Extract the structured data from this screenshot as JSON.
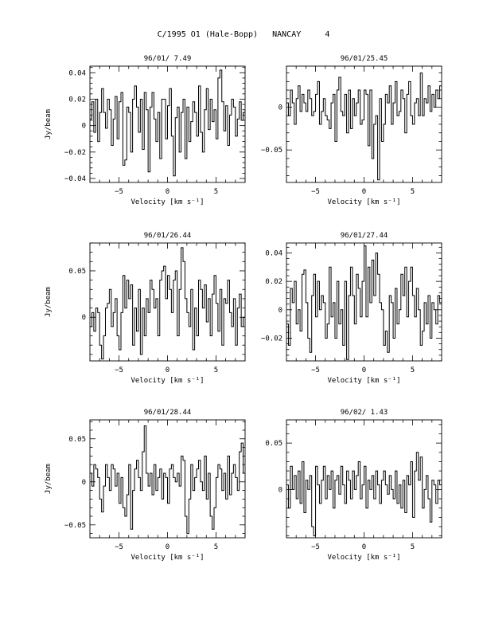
{
  "page": {
    "title": "C/1995 O1 (Hale-Bopp)   NANCAY     4"
  },
  "chart_data": [
    {
      "type": "line",
      "title": "96/01/ 7.49",
      "xlabel": "Velocity [km s⁻¹]",
      "ylabel": "Jy/beam",
      "xlim": [
        -8,
        8
      ],
      "ylim": [
        -0.043,
        0.045
      ],
      "xticks": [
        -5,
        0,
        5
      ],
      "yticks": [
        -0.04,
        -0.02,
        0,
        0.02,
        0.04
      ],
      "yticklabels": [
        "−0.04",
        "−0.02",
        "0",
        "0.02",
        "0.04"
      ],
      "x_start": -7.9,
      "x_step": 0.2,
      "values": [
        0.005,
        0.018,
        -0.005,
        0.02,
        -0.012,
        0.01,
        0.028,
        0.01,
        -0.002,
        0.02,
        0.012,
        -0.015,
        0.005,
        0.022,
        -0.01,
        0.018,
        0.025,
        -0.03,
        -0.026,
        0.014,
        0.01,
        -0.02,
        0.02,
        0.03,
        0.014,
        -0.005,
        0.02,
        -0.018,
        0.025,
        0.012,
        -0.035,
        0.014,
        0.025,
        0.005,
        -0.012,
        0.01,
        -0.025,
        0.02,
        0.02,
        -0.01,
        0.015,
        0.028,
        -0.008,
        -0.038,
        0.006,
        0.014,
        -0.02,
        0.01,
        0.02,
        -0.025,
        0.014,
        -0.012,
        0.003,
        0.018,
        0.01,
        -0.008,
        0.03,
        -0.005,
        -0.02,
        0.012,
        0.028,
        -0.003,
        0.02,
        0.003,
        0.012,
        -0.01,
        0.036,
        0.042,
        0.018,
        -0.004,
        0.015,
        -0.015,
        0.008,
        0.02,
        0.014,
        -0.008,
        0.005,
        0.018,
        0.004,
        0.01
      ]
    },
    {
      "type": "line",
      "title": "96/01/25.45",
      "xlabel": "Velocity [km s⁻¹]",
      "ylabel": "",
      "xlim": [
        -8,
        8
      ],
      "ylim": [
        -0.088,
        0.048
      ],
      "xticks": [
        -5,
        0,
        5
      ],
      "yticks": [
        -0.05,
        0
      ],
      "yticklabels": [
        "−0.05",
        "0"
      ],
      "x_start": -7.9,
      "x_step": 0.2,
      "values": [
        0.005,
        -0.01,
        0.02,
        0.005,
        -0.02,
        0.01,
        0.025,
        -0.005,
        0.015,
        0.005,
        -0.005,
        0.02,
        0.01,
        -0.01,
        -0.005,
        0.015,
        0.03,
        -0.02,
        -0.005,
        0.01,
        -0.01,
        -0.015,
        -0.025,
        0.005,
        0.015,
        -0.04,
        0.02,
        0.035,
        -0.005,
        -0.01,
        0.015,
        -0.03,
        0.02,
        -0.025,
        0.01,
        -0.01,
        0.005,
        0.02,
        -0.02,
        -0.015,
        0.02,
        0.015,
        -0.045,
        0.02,
        -0.06,
        -0.02,
        -0.01,
        -0.085,
        0.01,
        -0.04,
        -0.02,
        0.015,
        0.005,
        0.025,
        -0.02,
        0.005,
        0.03,
        -0.01,
        -0.005,
        0.02,
        0.01,
        -0.03,
        0.015,
        0.03,
        -0.01,
        -0.02,
        0.005,
        0.01,
        -0.01,
        0.04,
        -0.01,
        0.01,
        0.005,
        0.025,
        -0.005,
        0.015,
        0.0,
        0.02,
        0.01,
        0.025
      ]
    },
    {
      "type": "line",
      "title": "96/01/26.44",
      "xlabel": "Velocity [km s⁻¹]",
      "ylabel": "Jy/beam",
      "xlim": [
        -8,
        8
      ],
      "ylim": [
        -0.047,
        0.08
      ],
      "xticks": [
        -5,
        0,
        5
      ],
      "yticks": [
        0,
        0.05
      ],
      "yticklabels": [
        "0",
        "0.05"
      ],
      "x_start": -7.9,
      "x_step": 0.2,
      "values": [
        -0.01,
        0.005,
        -0.015,
        0.01,
        0.005,
        -0.03,
        -0.045,
        -0.02,
        0.01,
        0.015,
        0.03,
        -0.01,
        0.005,
        0.02,
        -0.02,
        -0.035,
        0.005,
        0.045,
        0.01,
        0.04,
        0.02,
        0.035,
        -0.03,
        0.01,
        -0.015,
        0.03,
        -0.04,
        0.01,
        -0.02,
        0.02,
        0.005,
        0.04,
        0.03,
        0.01,
        0.02,
        -0.02,
        0.04,
        0.05,
        0.055,
        0.02,
        0.045,
        0.03,
        0.005,
        0.04,
        0.05,
        -0.02,
        0.03,
        0.075,
        0.06,
        0.02,
        0.005,
        -0.01,
        0.03,
        -0.035,
        0.01,
        -0.02,
        0.04,
        0.03,
        0.01,
        0.035,
        -0.005,
        0.02,
        -0.02,
        0.025,
        0.045,
        0.015,
        -0.015,
        0.03,
        -0.03,
        0.02,
        0.015,
        0.04,
        0.005,
        -0.01,
        0.02,
        -0.03,
        0.01,
        0.025,
        -0.01,
        0.0
      ]
    },
    {
      "type": "line",
      "title": "96/01/27.44",
      "xlabel": "Velocity [km s⁻¹]",
      "ylabel": "",
      "xlim": [
        -8,
        8
      ],
      "ylim": [
        -0.036,
        0.047
      ],
      "xticks": [
        -5,
        0,
        5
      ],
      "yticks": [
        -0.02,
        0,
        0.02,
        0.04
      ],
      "yticklabels": [
        "−0.02",
        "0",
        "0.02",
        "0.04"
      ],
      "x_start": -7.9,
      "x_step": 0.2,
      "values": [
        -0.01,
        -0.025,
        0.015,
        0.005,
        0.02,
        -0.01,
        0.0,
        -0.015,
        0.025,
        0.028,
        0.005,
        -0.02,
        -0.03,
        0.01,
        0.025,
        -0.005,
        0.02,
        0.0,
        0.01,
        0.005,
        -0.02,
        -0.01,
        0.03,
        -0.005,
        0.005,
        -0.02,
        0.02,
        -0.01,
        0.0,
        -0.025,
        0.02,
        -0.035,
        0.01,
        0.03,
        0.01,
        -0.01,
        0.025,
        0.015,
        -0.005,
        0.02,
        0.045,
        -0.005,
        0.03,
        0.005,
        0.035,
        0.01,
        0.04,
        0.025,
        0.005,
        0.0,
        -0.025,
        -0.015,
        -0.03,
        0.01,
        0.005,
        -0.02,
        0.015,
        -0.01,
        0.0,
        0.025,
        0.01,
        0.03,
        -0.005,
        0.02,
        0.03,
        0.01,
        -0.005,
        0.015,
        0.0,
        -0.025,
        -0.015,
        0.005,
        -0.01,
        0.01,
        -0.02,
        0.005,
        0.0,
        -0.01,
        0.01,
        0.005
      ]
    },
    {
      "type": "line",
      "title": "96/01/28.44",
      "xlabel": "Velocity [km s⁻¹]",
      "ylabel": "Jy/beam",
      "xlim": [
        -8,
        8
      ],
      "ylim": [
        -0.065,
        0.072
      ],
      "xticks": [
        -5,
        0,
        5
      ],
      "yticks": [
        -0.05,
        0,
        0.05
      ],
      "yticklabels": [
        "−0.05",
        "0",
        "0.05"
      ],
      "x_start": -7.9,
      "x_step": 0.2,
      "values": [
        0.01,
        -0.005,
        0.02,
        0.015,
        0.005,
        -0.02,
        -0.035,
        -0.005,
        0.02,
        0.005,
        -0.01,
        0.02,
        0.015,
        -0.005,
        0.01,
        -0.025,
        0.005,
        -0.03,
        -0.04,
        -0.015,
        0.02,
        -0.055,
        -0.01,
        0.015,
        0.025,
        0.005,
        -0.01,
        0.035,
        0.065,
        0.01,
        -0.005,
        0.01,
        -0.015,
        0.02,
        -0.01,
        0.005,
        0.015,
        -0.02,
        0.01,
        0.005,
        -0.025,
        0.015,
        0.02,
        0.005,
        0.0,
        0.01,
        -0.005,
        0.03,
        0.025,
        -0.04,
        -0.06,
        -0.02,
        0.02,
        -0.01,
        0.005,
        0.015,
        0.025,
        0.0,
        -0.01,
        0.03,
        -0.02,
        0.01,
        -0.04,
        -0.055,
        -0.03,
        0.005,
        0.02,
        0.015,
        -0.01,
        0.01,
        -0.02,
        0.03,
        -0.015,
        0.01,
        0.02,
        0.005,
        -0.01,
        0.035,
        0.045,
        0.01
      ]
    },
    {
      "type": "line",
      "title": "96/02/ 1.43",
      "xlabel": "Velocity [km s⁻¹]",
      "ylabel": "",
      "xlim": [
        -8,
        8
      ],
      "ylim": [
        -0.052,
        0.075
      ],
      "xticks": [
        -5,
        0,
        5
      ],
      "yticks": [
        0,
        0.05
      ],
      "yticklabels": [
        "0",
        "0.05"
      ],
      "x_start": -7.9,
      "x_step": 0.2,
      "values": [
        0.005,
        -0.02,
        0.025,
        0.0,
        0.015,
        -0.01,
        0.02,
        -0.015,
        0.03,
        -0.025,
        0.01,
        0.0,
        0.015,
        -0.04,
        -0.05,
        0.025,
        0.005,
        -0.015,
        0.01,
        0.025,
        -0.01,
        0.015,
        0.0,
        0.02,
        -0.02,
        0.01,
        0.015,
        -0.005,
        0.025,
        0.005,
        -0.015,
        0.02,
        0.01,
        -0.01,
        0.02,
        0.0,
        0.015,
        0.03,
        -0.01,
        0.005,
        0.025,
        -0.02,
        0.01,
        0.0,
        0.015,
        -0.01,
        0.02,
        0.005,
        -0.015,
        0.01,
        0.02,
        0.005,
        -0.005,
        0.015,
        0.0,
        -0.01,
        0.02,
        -0.015,
        0.005,
        -0.02,
        0.01,
        -0.025,
        0.015,
        0.005,
        0.03,
        -0.03,
        0.02,
        0.04,
        0.01,
        0.035,
        -0.02,
        0.0,
        0.015,
        -0.01,
        -0.035,
        0.01,
        0.005,
        -0.015,
        0.01,
        0.005
      ]
    }
  ]
}
